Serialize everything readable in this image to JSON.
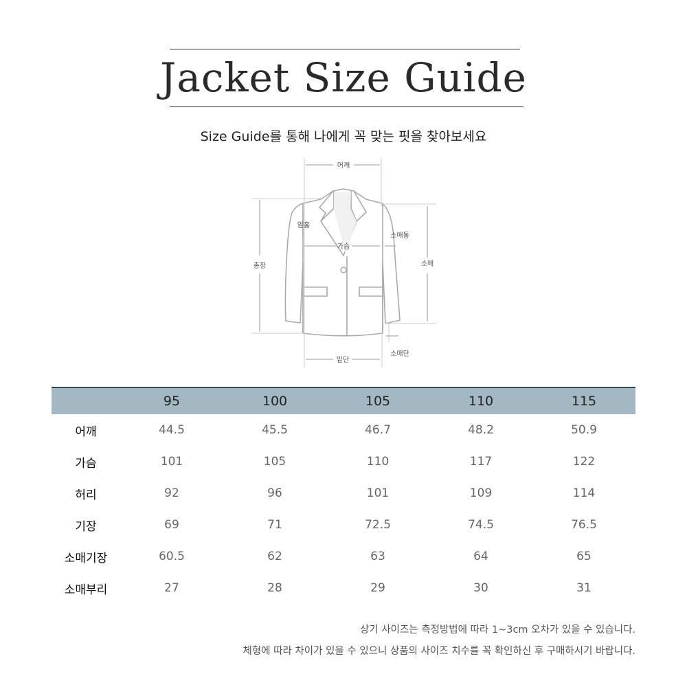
{
  "title": "Jacket Size Guide",
  "subtitle": "Size Guide를 통해 나에게 꼭 맞는 핏을 찾아보세요",
  "diagram": {
    "shoulder": "어깨",
    "armhole": "암홀",
    "chest": "가슴",
    "sleeve_width": "소매통",
    "total_length": "총장",
    "sleeve": "소매",
    "hem": "밑단",
    "sleeve_hem": "소매단"
  },
  "table": {
    "sizes": [
      "95",
      "100",
      "105",
      "110",
      "115"
    ],
    "rows": [
      {
        "label": "어깨",
        "values": [
          "44.5",
          "45.5",
          "46.7",
          "48.2",
          "50.9"
        ]
      },
      {
        "label": "가슴",
        "values": [
          "101",
          "105",
          "110",
          "117",
          "122"
        ]
      },
      {
        "label": "허리",
        "values": [
          "92",
          "96",
          "101",
          "109",
          "114"
        ]
      },
      {
        "label": "기장",
        "values": [
          "69",
          "71",
          "72.5",
          "74.5",
          "76.5"
        ]
      },
      {
        "label": "소매기장",
        "values": [
          "60.5",
          "62",
          "63",
          "64",
          "65"
        ]
      },
      {
        "label": "소매부리",
        "values": [
          "27",
          "28",
          "29",
          "30",
          "31"
        ]
      }
    ],
    "header_color": "#a3b8c3"
  },
  "notes": [
    "상기 사이즈는 측정방법에 따라 1~3cm 오차가 있을 수 있습니다.",
    "체형에 따라 차이가 있을 수 있으니 상품의 사이즈 치수를 꼭 확인하신 후 구매하시기 바랍니다."
  ]
}
